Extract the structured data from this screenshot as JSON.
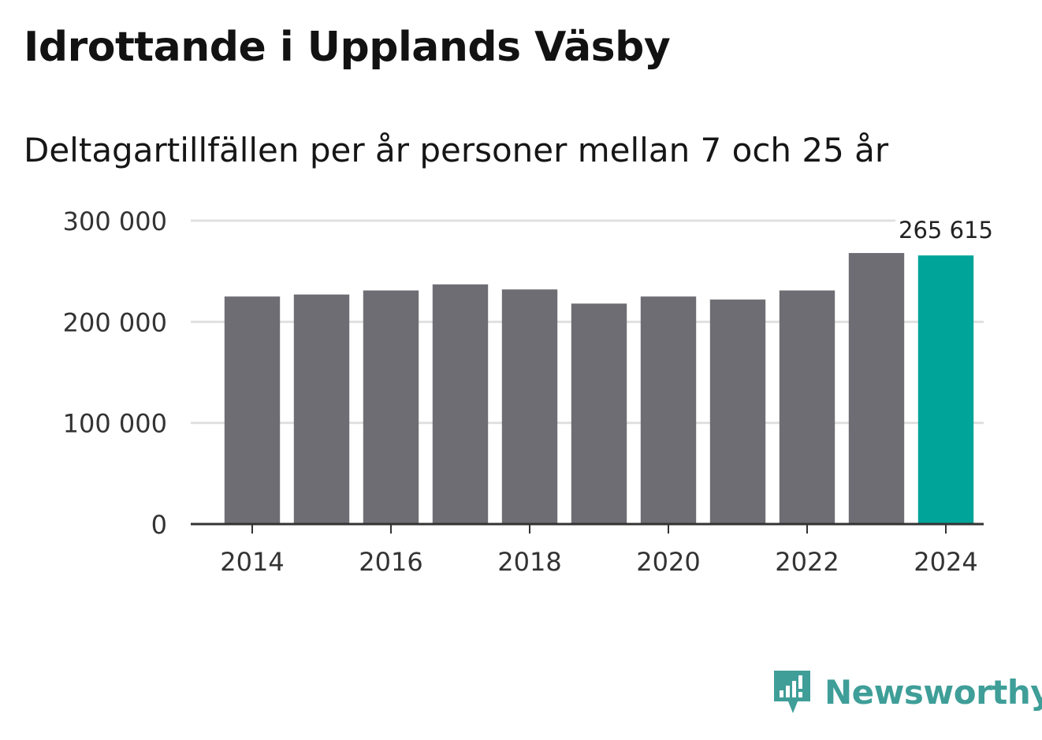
{
  "header": {
    "title": "Idrottande i Upplands Väsby",
    "subtitle": "Deltagartillfällen per år personer mellan 7 och 25 år"
  },
  "brand": {
    "name": "Newsworthy",
    "color": "#3f9e98"
  },
  "colors": {
    "bar": "#6e6d73",
    "highlight": "#00a499",
    "grid": "#e0e0e0",
    "axis": "#333333"
  },
  "chart_data": {
    "type": "bar",
    "title": "Idrottande i Upplands Väsby",
    "subtitle": "Deltagartillfällen per år personer mellan 7 och 25 år",
    "xlabel": "",
    "ylabel": "",
    "categories": [
      2014,
      2015,
      2016,
      2017,
      2018,
      2019,
      2020,
      2021,
      2022,
      2023,
      2024
    ],
    "values": [
      225000,
      227000,
      231000,
      237000,
      232000,
      218000,
      225000,
      222000,
      231000,
      268000,
      265615
    ],
    "ylim": [
      0,
      300000
    ],
    "yticks": [
      0,
      100000,
      200000,
      300000
    ],
    "ytick_labels": [
      "0",
      "100 000",
      "200 000",
      "300 000"
    ],
    "xtick_labels": [
      "2014",
      "2016",
      "2018",
      "2020",
      "2022",
      "2024"
    ],
    "highlight_index": 10,
    "highlight_label": "265 615",
    "grid": true,
    "legend": "none"
  }
}
